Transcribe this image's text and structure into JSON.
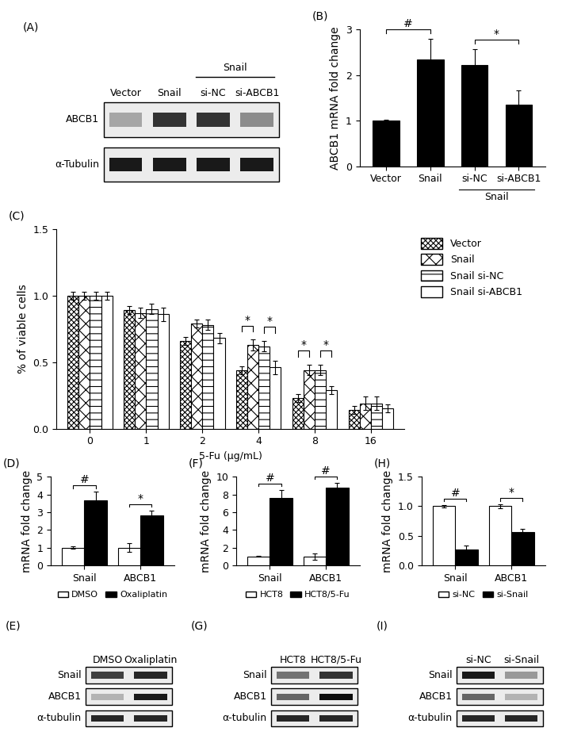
{
  "chart_data": [
    {
      "panel": "(A)",
      "type": "blot",
      "lanes": [
        "Vector",
        "Snail",
        "si-NC",
        "si-ABCB1"
      ],
      "lane_group": {
        "text": "Snail",
        "lanes": [
          "si-NC",
          "si-ABCB1"
        ]
      },
      "rows": [
        {
          "label": "ABCB1",
          "intensity": [
            0.35,
            0.8,
            0.8,
            0.45
          ]
        },
        {
          "label": "α-Tubulin",
          "intensity": [
            0.9,
            0.9,
            0.9,
            0.9
          ]
        }
      ]
    },
    {
      "panel": "(B)",
      "type": "bar",
      "y_label": "ABCB1 mRNA fold change",
      "categories": [
        "Vector",
        "Snail",
        "si-NC",
        "si-ABCB1"
      ],
      "values": [
        1.0,
        2.35,
        2.22,
        1.35
      ],
      "errors": [
        0.03,
        0.45,
        0.35,
        0.32
      ],
      "color": "#000000",
      "ylim": [
        0,
        3
      ],
      "yticks": [
        0,
        1,
        2,
        3
      ],
      "group_label": {
        "text": "Snail",
        "categories": [
          "si-NC",
          "si-ABCB1"
        ]
      },
      "significance": [
        {
          "categories": [
            "Vector",
            "Snail"
          ],
          "label": "#"
        },
        {
          "categories": [
            "si-NC",
            "si-ABCB1"
          ],
          "label": "*"
        }
      ]
    },
    {
      "panel": "(C)",
      "type": "bar",
      "y_label": "% of viable cells",
      "x_label": "5-Fu (μg/mL)",
      "categories": [
        "0",
        "1",
        "2",
        "4",
        "8",
        "16"
      ],
      "series": [
        {
          "name": "Vector",
          "color": "#ffffff",
          "values": [
            1.0,
            0.89,
            0.66,
            0.44,
            0.23,
            0.14
          ],
          "errors": [
            0.03,
            0.03,
            0.03,
            0.03,
            0.03,
            0.03
          ]
        },
        {
          "name": "Snail",
          "color": "#ffffff",
          "values": [
            1.0,
            0.87,
            0.79,
            0.63,
            0.44,
            0.19
          ],
          "errors": [
            0.03,
            0.04,
            0.03,
            0.04,
            0.04,
            0.05
          ]
        },
        {
          "name": "Snail si-NC",
          "color": "#ffffff",
          "values": [
            1.0,
            0.9,
            0.78,
            0.62,
            0.44,
            0.19
          ],
          "errors": [
            0.03,
            0.04,
            0.04,
            0.04,
            0.04,
            0.05
          ]
        },
        {
          "name": "Snail si-ABCB1",
          "color": "#ffffff",
          "values": [
            1.0,
            0.86,
            0.68,
            0.46,
            0.29,
            0.15
          ],
          "errors": [
            0.03,
            0.05,
            0.04,
            0.05,
            0.03,
            0.03
          ]
        }
      ],
      "ylim": [
        0,
        1.5
      ],
      "yticks": [
        {
          "value": 0,
          "label": "0.0"
        },
        {
          "value": 0.5,
          "label": "0.5"
        },
        {
          "value": 1.0,
          "label": "1.0"
        },
        {
          "value": 1.5,
          "label": "1.5"
        }
      ],
      "legend": "right",
      "significance": [
        {
          "category": "4",
          "series": [
            "Vector",
            "Snail"
          ],
          "label": "*"
        },
        {
          "category": "4",
          "series": [
            "Snail si-NC",
            "Snail si-ABCB1"
          ],
          "label": "*"
        },
        {
          "category": "8",
          "series": [
            "Vector",
            "Snail"
          ],
          "label": "*"
        },
        {
          "category": "8",
          "series": [
            "Snail si-NC",
            "Snail si-ABCB1"
          ],
          "label": "*"
        }
      ]
    },
    {
      "panel": "(D)",
      "type": "bar",
      "y_label": "mRNA fold change",
      "categories": [
        "Snail",
        "ABCB1"
      ],
      "series": [
        {
          "name": "DMSO",
          "color": "#ffffff",
          "values": [
            1.0,
            1.0
          ],
          "errors": [
            0.05,
            0.25
          ]
        },
        {
          "name": "Oxaliplatin",
          "color": "#000000",
          "values": [
            3.65,
            2.8
          ],
          "errors": [
            0.5,
            0.3
          ]
        }
      ],
      "ylim": [
        0,
        5
      ],
      "yticks": [
        0,
        1,
        2,
        3,
        4,
        5
      ],
      "legend": "below",
      "significance": [
        {
          "category": "Snail",
          "series": [
            "DMSO",
            "Oxaliplatin"
          ],
          "label": "#"
        },
        {
          "category": "ABCB1",
          "series": [
            "DMSO",
            "Oxaliplatin"
          ],
          "label": "*"
        }
      ]
    },
    {
      "panel": "(F)",
      "type": "bar",
      "y_label": "mRNA fold change",
      "categories": [
        "Snail",
        "ABCB1"
      ],
      "series": [
        {
          "name": "HCT8",
          "color": "#ffffff",
          "values": [
            1.0,
            1.0
          ],
          "errors": [
            0.05,
            0.35
          ]
        },
        {
          "name": "HCT8/5-Fu",
          "color": "#000000",
          "values": [
            7.6,
            8.8
          ],
          "errors": [
            0.9,
            0.5
          ]
        }
      ],
      "ylim": [
        0,
        10
      ],
      "yticks": [
        0,
        2,
        4,
        6,
        8,
        10
      ],
      "legend": "below",
      "significance": [
        {
          "category": "Snail",
          "series": [
            "HCT8",
            "HCT8/5-Fu"
          ],
          "label": "#"
        },
        {
          "category": "ABCB1",
          "series": [
            "HCT8",
            "HCT8/5-Fu"
          ],
          "label": "#"
        }
      ]
    },
    {
      "panel": "(H)",
      "type": "bar",
      "y_label": "mRNA fold change",
      "categories": [
        "Snail",
        "ABCB1"
      ],
      "series": [
        {
          "name": "si-NC",
          "color": "#ffffff",
          "values": [
            1.0,
            1.0
          ],
          "errors": [
            0.02,
            0.03
          ]
        },
        {
          "name": "si-Snail",
          "color": "#000000",
          "values": [
            0.27,
            0.56
          ],
          "errors": [
            0.07,
            0.05
          ]
        }
      ],
      "ylim": [
        0,
        1.5
      ],
      "yticks": [
        {
          "value": 0,
          "label": "0.0"
        },
        {
          "value": 0.5,
          "label": "0.5"
        },
        {
          "value": 1.0,
          "label": "1.0"
        },
        {
          "value": 1.5,
          "label": "1.5"
        }
      ],
      "legend": "below",
      "significance": [
        {
          "category": "Snail",
          "series": [
            "si-NC",
            "si-Snail"
          ],
          "label": "#"
        },
        {
          "category": "ABCB1",
          "series": [
            "si-NC",
            "si-Snail"
          ],
          "label": "*"
        }
      ]
    },
    {
      "panel": "(E)",
      "type": "blot",
      "lanes": [
        "DMSO",
        "Oxaliplatin"
      ],
      "rows": [
        {
          "label": "Snail",
          "intensity": [
            0.75,
            0.85
          ]
        },
        {
          "label": "ABCB1",
          "intensity": [
            0.3,
            0.9
          ]
        },
        {
          "label": "α-tubulin",
          "intensity": [
            0.85,
            0.85
          ]
        }
      ]
    },
    {
      "panel": "(G)",
      "type": "blot",
      "lanes": [
        "HCT8",
        "HCT8/5-Fu"
      ],
      "rows": [
        {
          "label": "Snail",
          "intensity": [
            0.55,
            0.8
          ]
        },
        {
          "label": "ABCB1",
          "intensity": [
            0.6,
            0.95
          ]
        },
        {
          "label": "α-tubulin",
          "intensity": [
            0.85,
            0.85
          ]
        }
      ]
    },
    {
      "panel": "(I)",
      "type": "blot",
      "lanes": [
        "si-NC",
        "si-Snail"
      ],
      "rows": [
        {
          "label": "Snail",
          "intensity": [
            0.9,
            0.4
          ]
        },
        {
          "label": "ABCB1",
          "intensity": [
            0.6,
            0.3
          ]
        },
        {
          "label": "α-tubulin",
          "intensity": [
            0.85,
            0.85
          ]
        }
      ]
    }
  ]
}
